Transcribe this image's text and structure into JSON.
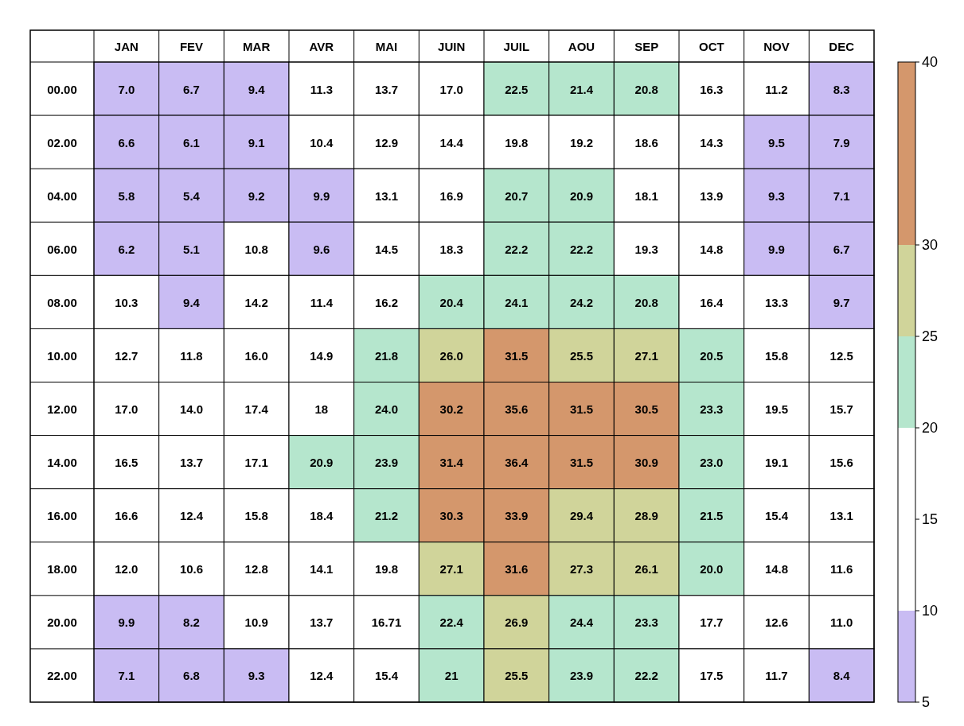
{
  "chart_data": {
    "type": "heatmap",
    "categories": [
      "JAN",
      "FEV",
      "MAR",
      "AVR",
      "MAI",
      "JUIN",
      "JUIL",
      "AOU",
      "SEP",
      "OCT",
      "NOV",
      "DEC"
    ],
    "y_categories": [
      "00.00",
      "02.00",
      "04.00",
      "06.00",
      "08.00",
      "10.00",
      "12.00",
      "14.00",
      "16.00",
      "18.00",
      "20.00",
      "22.00"
    ],
    "cells": [
      [
        7.0,
        6.7,
        9.4,
        11.3,
        13.7,
        17.0,
        22.5,
        21.4,
        20.8,
        16.3,
        11.2,
        8.3
      ],
      [
        6.6,
        6.1,
        9.1,
        10.4,
        12.9,
        14.4,
        19.8,
        19.2,
        18.6,
        14.3,
        9.5,
        7.9
      ],
      [
        5.8,
        5.4,
        9.2,
        9.9,
        13.1,
        16.9,
        20.7,
        20.9,
        18.1,
        13.9,
        9.3,
        7.1
      ],
      [
        6.2,
        5.1,
        10.8,
        9.6,
        14.5,
        18.3,
        22.2,
        22.2,
        19.3,
        14.8,
        9.9,
        6.7
      ],
      [
        10.3,
        9.4,
        14.2,
        11.4,
        16.2,
        20.4,
        24.1,
        24.2,
        20.8,
        16.4,
        13.3,
        9.7
      ],
      [
        12.7,
        11.8,
        16.0,
        14.9,
        21.8,
        26.0,
        31.5,
        25.5,
        27.1,
        20.5,
        15.8,
        12.5
      ],
      [
        17.0,
        14.0,
        17.4,
        18,
        24.0,
        30.2,
        35.6,
        31.5,
        30.5,
        23.3,
        19.5,
        15.7
      ],
      [
        16.5,
        13.7,
        17.1,
        20.9,
        23.9,
        31.4,
        36.4,
        31.5,
        30.9,
        23.0,
        19.1,
        15.6
      ],
      [
        16.6,
        12.4,
        15.8,
        18.4,
        21.2,
        30.3,
        33.9,
        29.4,
        28.9,
        21.5,
        15.4,
        13.1
      ],
      [
        12.0,
        10.6,
        12.8,
        14.1,
        19.8,
        27.1,
        31.6,
        27.3,
        26.1,
        20.0,
        14.8,
        11.6
      ],
      [
        9.9,
        8.2,
        10.9,
        13.7,
        16.71,
        22.4,
        26.9,
        24.4,
        23.3,
        17.7,
        12.6,
        11.0
      ],
      [
        7.1,
        6.8,
        9.3,
        12.4,
        15.4,
        21,
        25.5,
        23.9,
        22.2,
        17.5,
        11.7,
        8.4
      ]
    ],
    "cell_labels": [
      [
        "7.0",
        "6.7",
        "9.4",
        "11.3",
        "13.7",
        "17.0",
        "22.5",
        "21.4",
        "20.8",
        "16.3",
        "11.2",
        "8.3"
      ],
      [
        "6.6",
        "6.1",
        "9.1",
        "10.4",
        "12.9",
        "14.4",
        "19.8",
        "19.2",
        "18.6",
        "14.3",
        "9.5",
        "7.9"
      ],
      [
        "5.8",
        "5.4",
        "9.2",
        "9.9",
        "13.1",
        "16.9",
        "20.7",
        "20.9",
        "18.1",
        "13.9",
        "9.3",
        "7.1"
      ],
      [
        "6.2",
        "5.1",
        "10.8",
        "9.6",
        "14.5",
        "18.3",
        "22.2",
        "22.2",
        "19.3",
        "14.8",
        "9.9",
        "6.7"
      ],
      [
        "10.3",
        "9.4",
        "14.2",
        "11.4",
        "16.2",
        "20.4",
        "24.1",
        "24.2",
        "20.8",
        "16.4",
        "13.3",
        "9.7"
      ],
      [
        "12.7",
        "11.8",
        "16.0",
        "14.9",
        "21.8",
        "26.0",
        "31.5",
        "25.5",
        "27.1",
        "20.5",
        "15.8",
        "12.5"
      ],
      [
        "17.0",
        "14.0",
        "17.4",
        "18",
        "24.0",
        "30.2",
        "35.6",
        "31.5",
        "30.5",
        "23.3",
        "19.5",
        "15.7"
      ],
      [
        "16.5",
        "13.7",
        "17.1",
        "20.9",
        "23.9",
        "31.4",
        "36.4",
        "31.5",
        "30.9",
        "23.0",
        "19.1",
        "15.6"
      ],
      [
        "16.6",
        "12.4",
        "15.8",
        "18.4",
        "21.2",
        "30.3",
        "33.9",
        "29.4",
        "28.9",
        "21.5",
        "15.4",
        "13.1"
      ],
      [
        "12.0",
        "10.6",
        "12.8",
        "14.1",
        "19.8",
        "27.1",
        "31.6",
        "27.3",
        "26.1",
        "20.0",
        "14.8",
        "11.6"
      ],
      [
        "9.9",
        "8.2",
        "10.9",
        "13.7",
        "16.71",
        "22.4",
        "26.9",
        "24.4",
        "23.3",
        "17.7",
        "12.6",
        "11.0"
      ],
      [
        "7.1",
        "6.8",
        "9.3",
        "12.4",
        "15.4",
        "21",
        "25.5",
        "23.9",
        "22.2",
        "17.5",
        "11.7",
        "8.4"
      ]
    ],
    "clim": [
      5,
      40
    ],
    "cticks": [
      5,
      10,
      15,
      20,
      25,
      30,
      40
    ],
    "colors": [
      "#c9bcf3",
      "#ffffff",
      "#ffffff",
      "#b5e6cd",
      "#d0d49a",
      "#d4976c"
    ]
  }
}
